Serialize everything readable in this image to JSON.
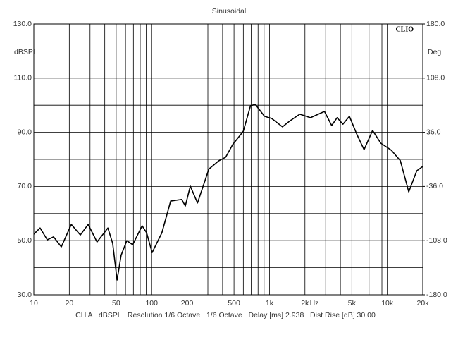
{
  "chart_data": {
    "type": "line",
    "title": "Sinusoidal",
    "brand": "CLIO",
    "ylabel": "dBSPL",
    "y2label": "Deg",
    "xlabel": "Hz",
    "footer": "CH A   dBSPL   Resolution 1/6 Octave   1/6 Octave   Delay [ms] 2.938   Dist Rise [dB] 30.00",
    "xscale": "log",
    "grid": true,
    "xlim": [
      10,
      20000
    ],
    "xticks": [
      10,
      20,
      50,
      100,
      200,
      500,
      {
        "value": 1000,
        "label": "1k"
      },
      {
        "value": 2000,
        "label": "2k"
      },
      {
        "value": 5000,
        "label": "5k"
      },
      {
        "value": 10000,
        "label": "10k"
      },
      {
        "value": 20000,
        "label": "20k"
      }
    ],
    "xminor": [
      30,
      40,
      60,
      70,
      80,
      90,
      300,
      400,
      600,
      700,
      800,
      900,
      3000,
      4000,
      6000,
      7000,
      8000,
      9000
    ],
    "ylim": [
      30,
      130
    ],
    "yticks": [
      {
        "value": 30,
        "label": "30.0"
      },
      {
        "value": 50,
        "label": "50.0"
      },
      {
        "value": 70,
        "label": "70.0"
      },
      {
        "value": 90,
        "label": "90.0"
      },
      {
        "value": 110,
        "label": "110.0"
      },
      {
        "value": 130,
        "label": "130.0"
      }
    ],
    "yminor": [
      40,
      60,
      80,
      100,
      120
    ],
    "y2lim": [
      -180,
      180
    ],
    "y2ticks": [
      {
        "value": -180,
        "label": "-180.0"
      },
      {
        "value": -108,
        "label": "-108.0"
      },
      {
        "value": -36,
        "label": "-36.0"
      },
      {
        "value": 36,
        "label": "36.0"
      },
      {
        "value": 108,
        "label": "108.0"
      },
      {
        "value": 180,
        "label": "180.0"
      }
    ],
    "x": [
      10,
      11.3,
      13,
      14.7,
      17.1,
      20.8,
      24.8,
      28.9,
      34.4,
      42.5,
      46.7,
      50.9,
      55.1,
      61.6,
      69,
      83,
      90.6,
      101,
      122,
      145,
      180,
      193,
      213,
      245,
      306,
      372,
      425,
      488,
      600,
      690,
      758,
      907,
      1044,
      1289,
      1478,
      1810,
      2227,
      2931,
      3370,
      3750,
      4200,
      4770,
      5500,
      6350,
      7500,
      8800,
      10800,
      12900,
      15200,
      17800,
      20000
    ],
    "series": [
      {
        "name": "CH A",
        "color": "#000000",
        "values": [
          52.4,
          54.7,
          50.3,
          51.4,
          47.7,
          56.0,
          52.1,
          56.0,
          49.5,
          54.7,
          49.0,
          35.5,
          44.6,
          50.0,
          48.5,
          55.5,
          52.9,
          45.6,
          52.9,
          64.6,
          65.2,
          62.8,
          70.1,
          63.9,
          76.4,
          79.5,
          80.8,
          85.5,
          90.4,
          99.8,
          100.3,
          95.9,
          95.1,
          92.0,
          94.1,
          96.7,
          95.4,
          97.7,
          92.5,
          95.4,
          93.0,
          95.9,
          89.4,
          83.6,
          90.7,
          86.0,
          83.4,
          79.5,
          68.0,
          75.8,
          77.4
        ]
      }
    ]
  }
}
